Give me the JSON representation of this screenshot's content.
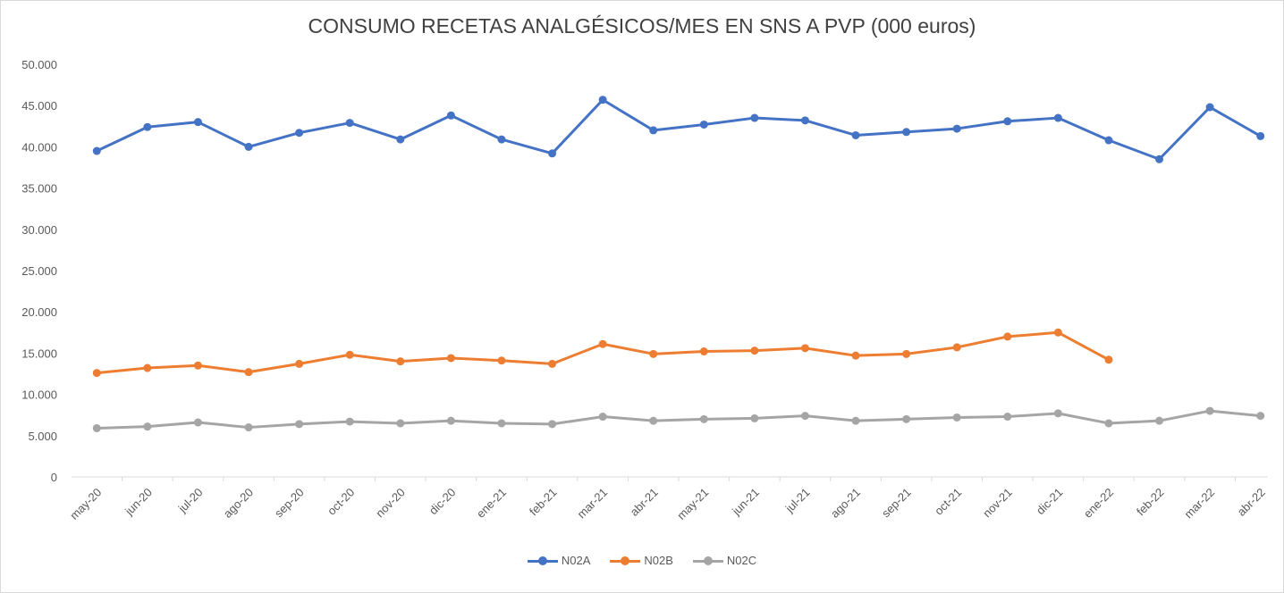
{
  "chart_data": {
    "type": "line",
    "title": "CONSUMO RECETAS ANALGÉSICOS/MES EN SNS A PVP (000 euros)",
    "xlabel": "",
    "ylabel": "",
    "ylim": [
      0,
      50000
    ],
    "y_ticks": [
      "0",
      "5.000",
      "10.000",
      "15.000",
      "20.000",
      "25.000",
      "30.000",
      "35.000",
      "40.000",
      "45.000",
      "50.000"
    ],
    "y_tick_values": [
      0,
      5000,
      10000,
      15000,
      20000,
      25000,
      30000,
      35000,
      40000,
      45000,
      50000
    ],
    "grid": false,
    "legend_position": "bottom",
    "categories": [
      "may-20",
      "jun-20",
      "jul-20",
      "ago-20",
      "sep-20",
      "oct-20",
      "nov-20",
      "dic-20",
      "ene-21",
      "feb-21",
      "mar-21",
      "abr-21",
      "may-21",
      "jun-21",
      "jul-21",
      "ago-21",
      "sep-21",
      "oct-21",
      "nov-21",
      "dic-21",
      "ene-22",
      "feb-22",
      "mar-22",
      "abr-22"
    ],
    "series": [
      {
        "name": "N02A",
        "color": "#4472c4",
        "values": [
          39500,
          42400,
          43000,
          40000,
          41700,
          42900,
          40900,
          43800,
          40900,
          39200,
          45700,
          42000,
          42700,
          43500,
          43200,
          41400,
          41800,
          42200,
          43100,
          43500,
          40800,
          38500,
          44800,
          41300
        ]
      },
      {
        "name": "N02B",
        "color": "#ed7d31",
        "values": [
          12600,
          13200,
          13500,
          12700,
          13700,
          14800,
          14000,
          14400,
          14100,
          13700,
          16100,
          14900,
          15200,
          15300,
          15600,
          14700,
          14900,
          15700,
          17000,
          17500,
          14200,
          null,
          null,
          null
        ]
      },
      {
        "name": "N02C",
        "color": "#a5a5a5",
        "values": [
          5900,
          6100,
          6600,
          6000,
          6400,
          6700,
          6500,
          6800,
          6500,
          6400,
          7300,
          6800,
          7000,
          7100,
          7400,
          6800,
          7000,
          7200,
          7300,
          7700,
          6500,
          6800,
          8000,
          7400
        ]
      }
    ]
  }
}
